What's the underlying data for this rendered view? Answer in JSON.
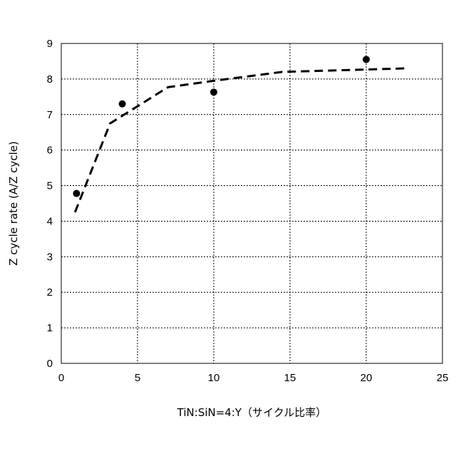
{
  "chart_data": {
    "type": "scatter",
    "title": "",
    "xlabel": "TiN:SiN=4:Y（サイクル比率）",
    "ylabel": "Z cycle rate (A/Z cycle)",
    "xlim": [
      0,
      25
    ],
    "ylim": [
      0,
      9
    ],
    "xticks": [
      0,
      5,
      10,
      15,
      20,
      25
    ],
    "yticks": [
      0,
      1,
      2,
      3,
      4,
      5,
      6,
      7,
      8,
      9
    ],
    "grid": true,
    "grid_style": "dotted",
    "legend": "none",
    "series": [
      {
        "kind": "points",
        "marker": "filled-circle",
        "color": "#000000",
        "x": [
          1,
          4,
          10,
          20
        ],
        "y": [
          4.78,
          7.3,
          7.63,
          8.55
        ]
      },
      {
        "kind": "dashed-line",
        "color": "#000000",
        "x": [
          0.9,
          3.2,
          7,
          10,
          14.5,
          22.7
        ],
        "y": [
          4.25,
          6.75,
          7.77,
          7.95,
          8.2,
          8.3
        ]
      }
    ]
  }
}
